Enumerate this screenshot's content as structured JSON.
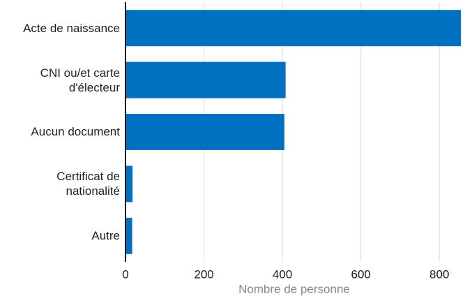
{
  "chart_data": {
    "type": "bar",
    "orientation": "horizontal",
    "categories": [
      "Acte de naissance",
      "CNI ou/et carte d'électeur",
      "Aucun document",
      "Certificat de nationalité",
      "Autre"
    ],
    "values": [
      855,
      408,
      405,
      18,
      17
    ],
    "color": "#0070c0",
    "xlabel": "Nombre de personne",
    "xlim": [
      0,
      860
    ],
    "xticks": [
      0,
      200,
      400,
      600,
      800
    ],
    "grid": true
  }
}
